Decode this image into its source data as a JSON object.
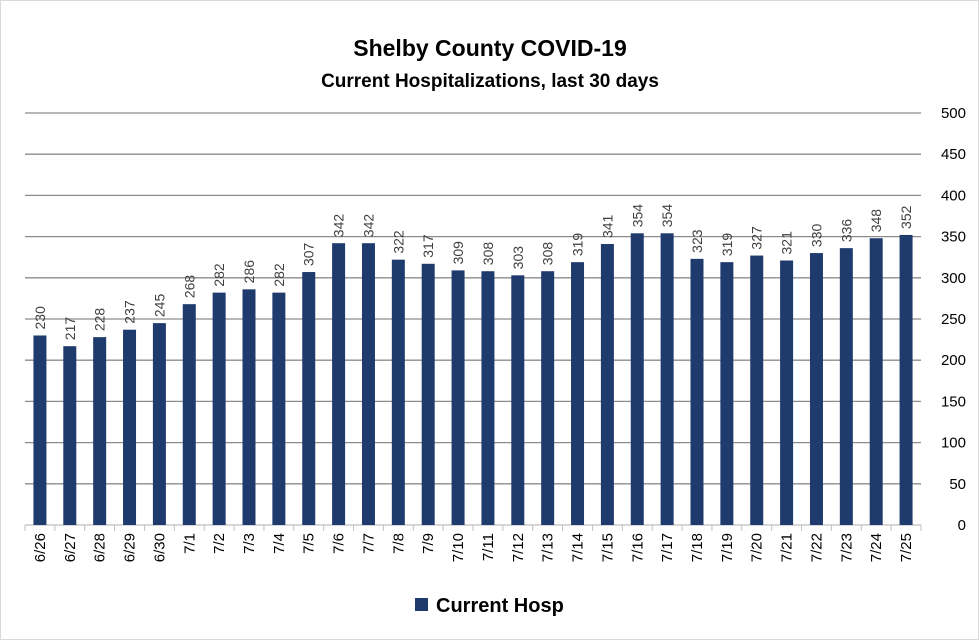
{
  "chart_data": {
    "type": "bar",
    "title": "Shelby County COVID-19",
    "subtitle": "Current Hospitalizations, last 30 days",
    "categories": [
      "6/26",
      "6/27",
      "6/28",
      "6/29",
      "6/30",
      "7/1",
      "7/2",
      "7/3",
      "7/4",
      "7/5",
      "7/6",
      "7/7",
      "7/8",
      "7/9",
      "7/10",
      "7/11",
      "7/12",
      "7/13",
      "7/14",
      "7/15",
      "7/16",
      "7/17",
      "7/18",
      "7/19",
      "7/20",
      "7/21",
      "7/22",
      "7/23",
      "7/24",
      "7/25"
    ],
    "series": [
      {
        "name": "Current Hosp",
        "color": "#1f3b6e",
        "values": [
          230,
          217,
          228,
          237,
          245,
          268,
          282,
          286,
          282,
          307,
          342,
          342,
          322,
          317,
          309,
          308,
          303,
          308,
          319,
          341,
          354,
          354,
          323,
          319,
          327,
          321,
          330,
          336,
          348,
          352
        ]
      }
    ],
    "ylim": [
      0,
      500
    ],
    "yticks": [
      0,
      50,
      100,
      150,
      200,
      250,
      300,
      350,
      400,
      450,
      500
    ],
    "y_axis_side": "right",
    "grid": true,
    "legend_position": "bottom",
    "data_labels": true
  }
}
